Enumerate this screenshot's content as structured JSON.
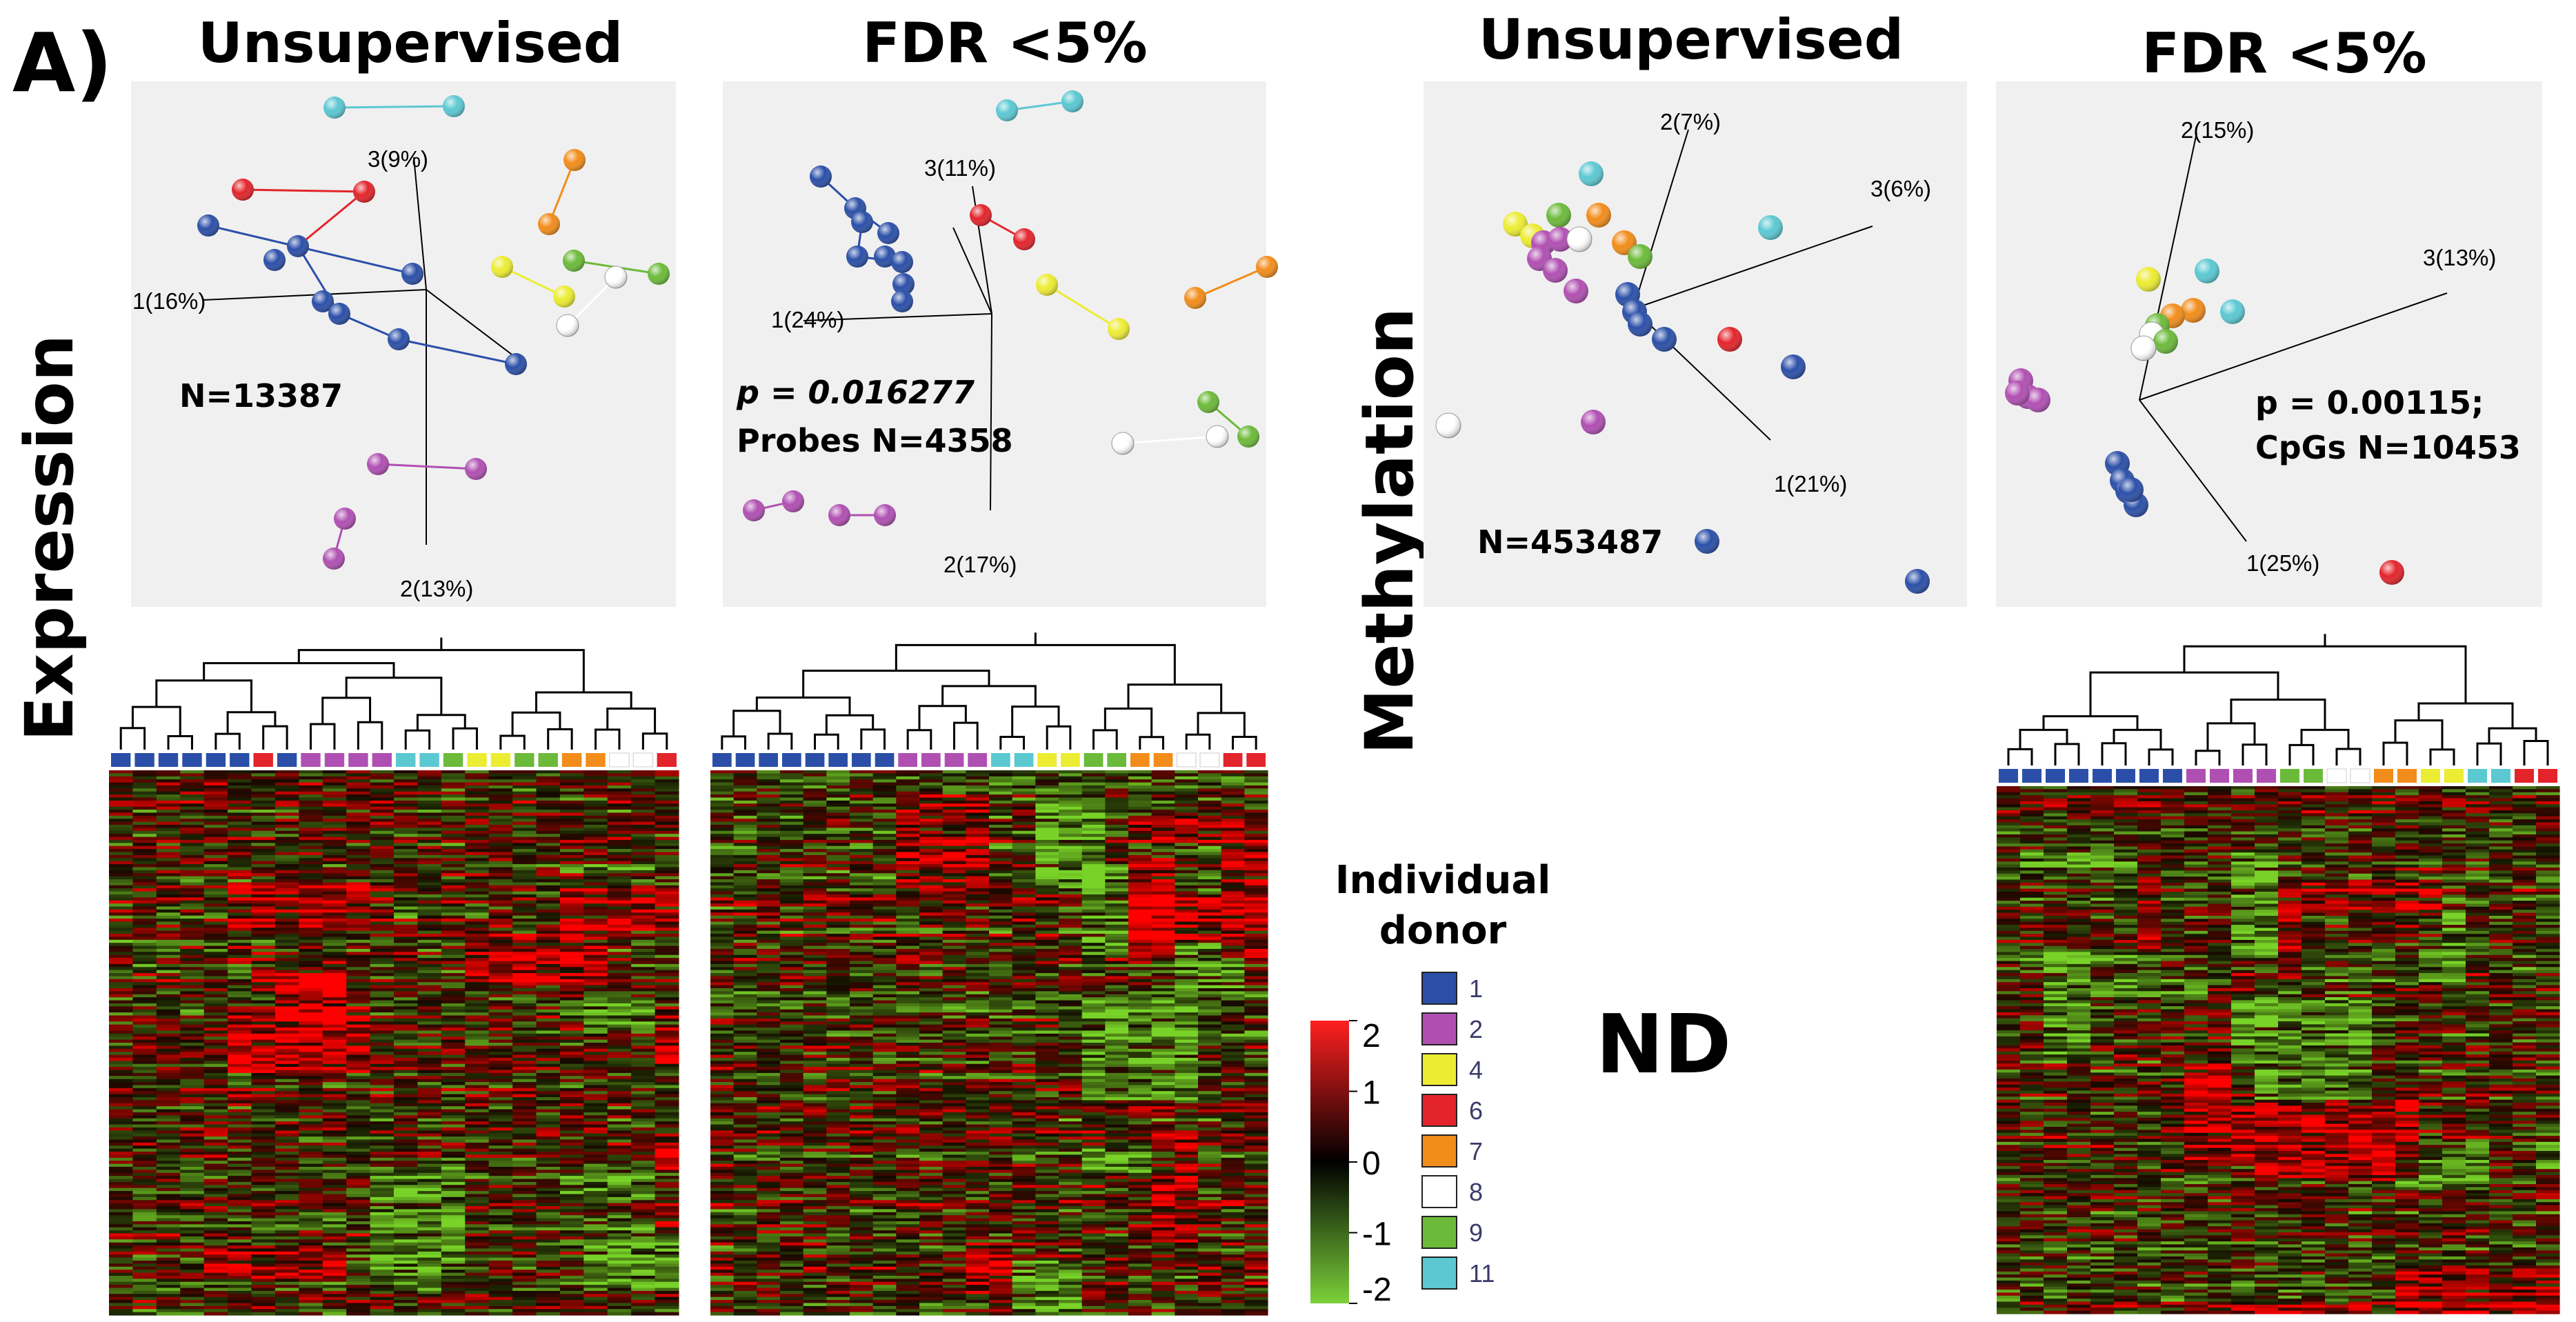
{
  "figure": {
    "panel_label": "A)",
    "row_labels": {
      "expression": "Expression",
      "methylation": "Methylation"
    },
    "nd_label": "ND"
  },
  "colors": {
    "donor_1": "#2b4fa8",
    "donor_2": "#b04fb2",
    "donor_4": "#ecec32",
    "donor_6": "#e3242b",
    "donor_7": "#f28c1a",
    "donor_8": "#ffffff",
    "donor_9": "#6cba3a",
    "donor_11": "#5bc8d2",
    "pca_background": "#f0f0f0"
  },
  "legend": {
    "title_line1": "Individual",
    "title_line2": "donor",
    "entries": [
      {
        "label": "1",
        "color": "#2b4fa8"
      },
      {
        "label": "2",
        "color": "#b04fb2"
      },
      {
        "label": "4",
        "color": "#ecec32"
      },
      {
        "label": "6",
        "color": "#e3242b"
      },
      {
        "label": "7",
        "color": "#f28c1a"
      },
      {
        "label": "8",
        "color": "#ffffff"
      },
      {
        "label": "9",
        "color": "#6cba3a"
      },
      {
        "label": "11",
        "color": "#5bc8d2"
      }
    ]
  },
  "colorbar": {
    "ticks": [
      "2",
      "1",
      "0",
      "-1",
      "-2"
    ],
    "values": [
      2,
      1,
      0,
      -1,
      -2
    ]
  },
  "chart_data": [
    {
      "type": "scatter",
      "title": "Unsupervised",
      "axes": [
        {
          "label": "1(16%)"
        },
        {
          "label": "2(13%)"
        },
        {
          "label": "3(9%)"
        }
      ],
      "annotation_lines": [
        "N=13387"
      ]
    },
    {
      "type": "scatter",
      "title": "FDR <5%",
      "axes": [
        {
          "label": "1(24%)"
        },
        {
          "label": "2(17%)"
        },
        {
          "label": "3(11%)"
        }
      ],
      "annotation_lines": [
        "p = 0.016277",
        "Probes N=4358"
      ]
    },
    {
      "type": "scatter",
      "title": "Unsupervised",
      "axes": [
        {
          "label": "1(21%)"
        },
        {
          "label": "2(7%)"
        },
        {
          "label": "3(6%)"
        }
      ],
      "annotation_lines": [
        "N=453487"
      ]
    },
    {
      "type": "scatter",
      "title": "FDR <5%",
      "axes": [
        {
          "label": "1(25%)"
        },
        {
          "label": "2(15%)"
        },
        {
          "label": "3(13%)"
        }
      ],
      "annotation_lines": [
        "p = 0.00115;",
        "CpGs N=10453"
      ]
    },
    {
      "type": "heatmap",
      "columns": [
        "1",
        "1",
        "1",
        "1",
        "1",
        "1",
        "6",
        "1",
        "2",
        "2",
        "2",
        "2",
        "11",
        "11",
        "9",
        "4",
        "4",
        "9",
        "9",
        "7",
        "7",
        "8",
        "8",
        "6"
      ]
    },
    {
      "type": "heatmap",
      "columns": [
        "1",
        "1",
        "1",
        "1",
        "1",
        "1",
        "1",
        "1",
        "2",
        "2",
        "2",
        "2",
        "11",
        "11",
        "4",
        "4",
        "9",
        "9",
        "7",
        "7",
        "8",
        "8",
        "6",
        "6"
      ]
    },
    {
      "type": "heatmap",
      "columns": [
        "1",
        "1",
        "1",
        "1",
        "1",
        "1",
        "1",
        "1",
        "2",
        "2",
        "2",
        "2",
        "9",
        "9",
        "8",
        "8",
        "7",
        "7",
        "4",
        "4",
        "11",
        "11",
        "6",
        "6"
      ]
    }
  ]
}
